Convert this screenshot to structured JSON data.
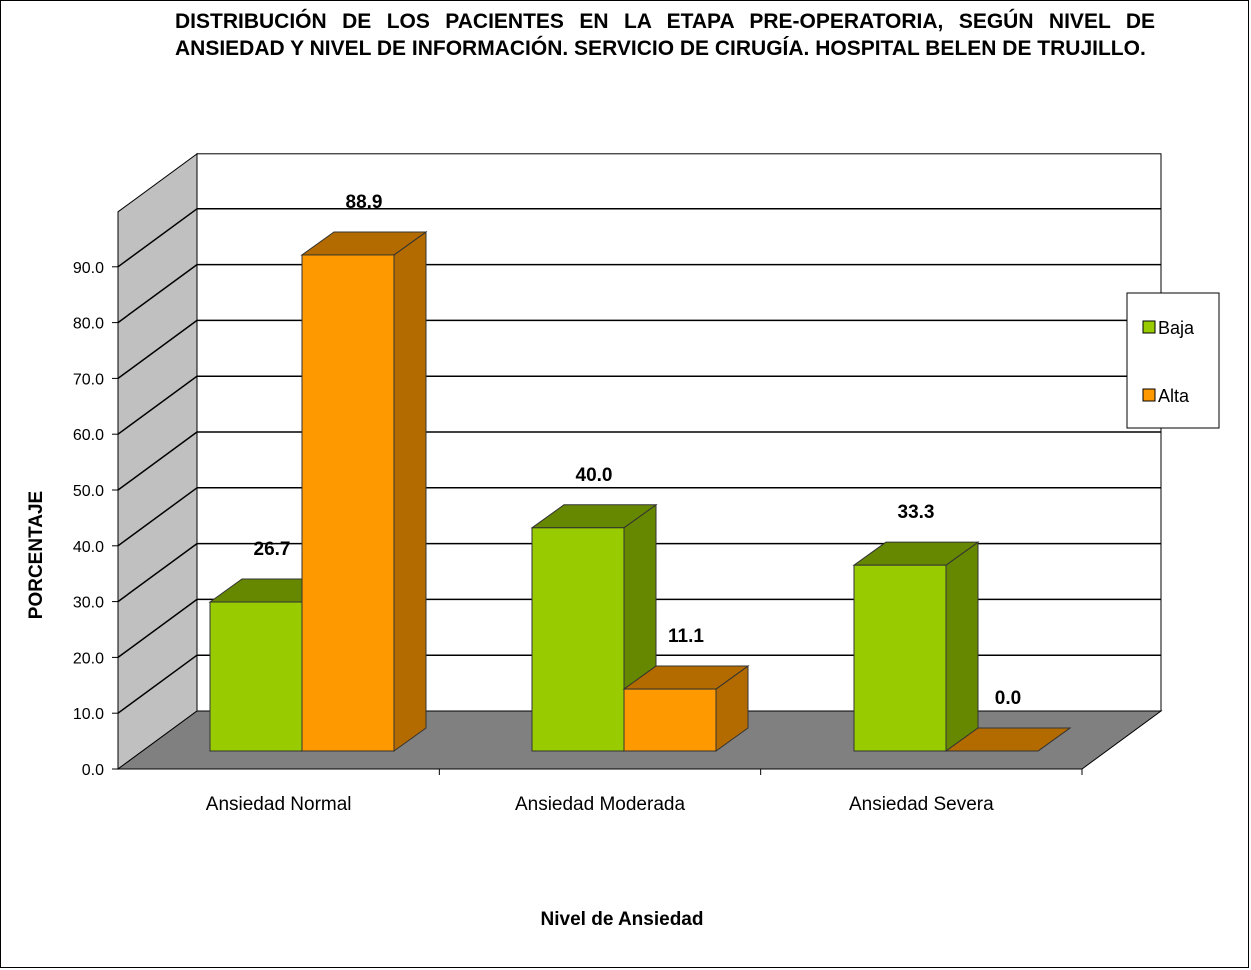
{
  "chart_data": {
    "type": "bar",
    "title": "DISTRIBUCIÓN DE LOS PACIENTES EN LA ETAPA  PRE-OPERATORIA, SEGÚN NIVEL DE ANSIEDAD Y NIVEL DE INFORMACIÓN. SERVICIO DE CIRUGÍA. HOSPITAL BELEN DE TRUJILLO.",
    "xlabel": "Nivel de Ansiedad",
    "ylabel": "PORCENTAJE",
    "categories": [
      "Ansiedad Normal",
      "Ansiedad Moderada",
      "Ansiedad Severa"
    ],
    "series": [
      {
        "name": "Baja",
        "values": [
          26.7,
          40.0,
          33.3
        ],
        "labels": [
          "26.7",
          "40.0",
          "33.3"
        ],
        "color": "#99cc00",
        "side_color": "#668800"
      },
      {
        "name": "Alta",
        "values": [
          88.9,
          11.1,
          0.0
        ],
        "labels": [
          "88.9",
          "11.1",
          "0.0"
        ],
        "color": "#ff9900",
        "side_color": "#b36b00"
      }
    ],
    "ylim": [
      0,
      90
    ],
    "yticks": [
      "0.0",
      "10.0",
      "20.0",
      "30.0",
      "40.0",
      "50.0",
      "60.0",
      "70.0",
      "80.0",
      "90.0"
    ],
    "grid": true,
    "legend_position": "right",
    "three_d": true
  }
}
